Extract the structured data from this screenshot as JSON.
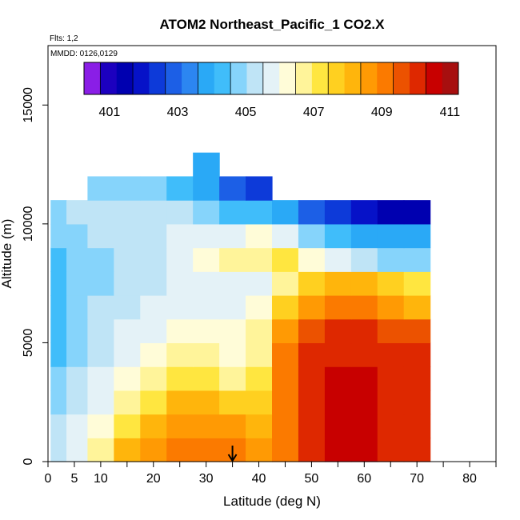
{
  "chart_data": {
    "type": "heatmap",
    "title": "ATOM2 Northeast_Pacific_1 CO2.X",
    "annotation_flts": "Flts: 1,2",
    "annotation_mmdd": "MMDD: 0126,0129",
    "xlabel": "Latitude (deg N)",
    "ylabel": "Altitude (m)",
    "xlim": [
      0,
      85
    ],
    "ylim": [
      0,
      17500
    ],
    "x_ticks": [
      0,
      5,
      10,
      20,
      30,
      40,
      50,
      60,
      70,
      80
    ],
    "x_minor_ticks": [
      15,
      25,
      35,
      45,
      55,
      65,
      75,
      85
    ],
    "y_ticks": [
      0,
      5000,
      10000,
      15000
    ],
    "colorbar": {
      "min": 400.25,
      "max": 411.25,
      "step": 0.5,
      "tick_values": [
        401,
        403,
        405,
        407,
        409,
        411
      ],
      "tick_labels": [
        "401",
        "403",
        "405",
        "407",
        "409",
        "411"
      ],
      "colors": [
        "#8a1ee6",
        "#1c00bf",
        "#0000b0",
        "#0612c8",
        "#0d3ad9",
        "#1c5fe6",
        "#2c86f1",
        "#2aa9f6",
        "#40bdfa",
        "#86d4fb",
        "#bfe4f6",
        "#e4f2f7",
        "#fffcd8",
        "#fff49a",
        "#ffe640",
        "#ffd020",
        "#ffb50c",
        "#ff9a04",
        "#fb7a00",
        "#ec5200",
        "#de2800",
        "#c80000",
        "#a70f0f"
      ]
    },
    "latitude_bins": [
      2,
      5,
      10,
      15,
      20,
      25,
      30,
      35,
      40,
      45,
      50,
      55,
      60,
      65,
      70
    ],
    "altitude_bins": [
      500,
      1500,
      2500,
      3500,
      4500,
      5500,
      6500,
      7500,
      8500,
      9500,
      10500,
      11500,
      12500
    ],
    "values": [
      [
        405.5,
        406.0,
        407.0,
        408.5,
        409.0,
        409.5,
        409.5,
        409.5,
        409.0,
        409.5,
        410.5,
        411.0,
        411.0,
        410.5,
        410.5
      ],
      [
        405.5,
        406.0,
        406.5,
        407.5,
        408.5,
        409.0,
        409.0,
        409.0,
        408.5,
        409.5,
        410.5,
        411.0,
        411.0,
        410.5,
        410.5
      ],
      [
        405.0,
        405.5,
        406.0,
        407.0,
        407.5,
        408.5,
        408.5,
        408.0,
        408.0,
        409.5,
        410.5,
        411.0,
        411.0,
        410.5,
        410.5
      ],
      [
        405.0,
        405.5,
        406.0,
        406.5,
        407.0,
        407.5,
        407.5,
        407.0,
        407.5,
        409.5,
        410.5,
        411.0,
        411.0,
        410.5,
        410.5
      ],
      [
        404.5,
        405.0,
        405.5,
        406.0,
        406.5,
        407.0,
        407.0,
        406.5,
        407.0,
        409.5,
        410.5,
        410.5,
        410.5,
        410.5,
        410.5
      ],
      [
        404.5,
        405.0,
        405.5,
        406.0,
        406.0,
        406.5,
        406.5,
        406.5,
        407.0,
        409.0,
        410.0,
        410.5,
        410.5,
        410.0,
        410.0
      ],
      [
        404.5,
        405.0,
        405.5,
        405.5,
        406.0,
        406.0,
        406.0,
        406.0,
        406.5,
        408.0,
        409.0,
        409.5,
        409.5,
        409.0,
        408.5
      ],
      [
        404.5,
        405.0,
        405.0,
        405.5,
        405.5,
        406.0,
        406.0,
        406.0,
        406.0,
        407.0,
        408.0,
        408.5,
        408.5,
        408.0,
        407.5
      ],
      [
        404.5,
        405.0,
        405.0,
        405.5,
        405.5,
        406.0,
        406.5,
        407.0,
        407.0,
        407.5,
        406.5,
        406.0,
        405.5,
        405.0,
        405.0
      ],
      [
        405.0,
        405.0,
        405.5,
        405.5,
        405.5,
        406.0,
        406.0,
        406.0,
        406.5,
        406.0,
        405.0,
        404.5,
        404.0,
        404.0,
        404.0
      ],
      [
        405.0,
        405.5,
        405.5,
        405.5,
        405.5,
        405.5,
        405.0,
        404.5,
        404.5,
        404.0,
        403.0,
        402.5,
        402.0,
        401.5,
        401.5
      ],
      [
        null,
        null,
        405.0,
        405.0,
        405.0,
        404.5,
        404.0,
        403.0,
        402.5,
        null,
        null,
        null,
        null,
        null,
        null
      ],
      [
        null,
        null,
        null,
        null,
        null,
        null,
        404.0,
        null,
        null,
        null,
        null,
        null,
        null,
        null,
        null
      ]
    ],
    "arrow_marker_latitude": 35
  }
}
